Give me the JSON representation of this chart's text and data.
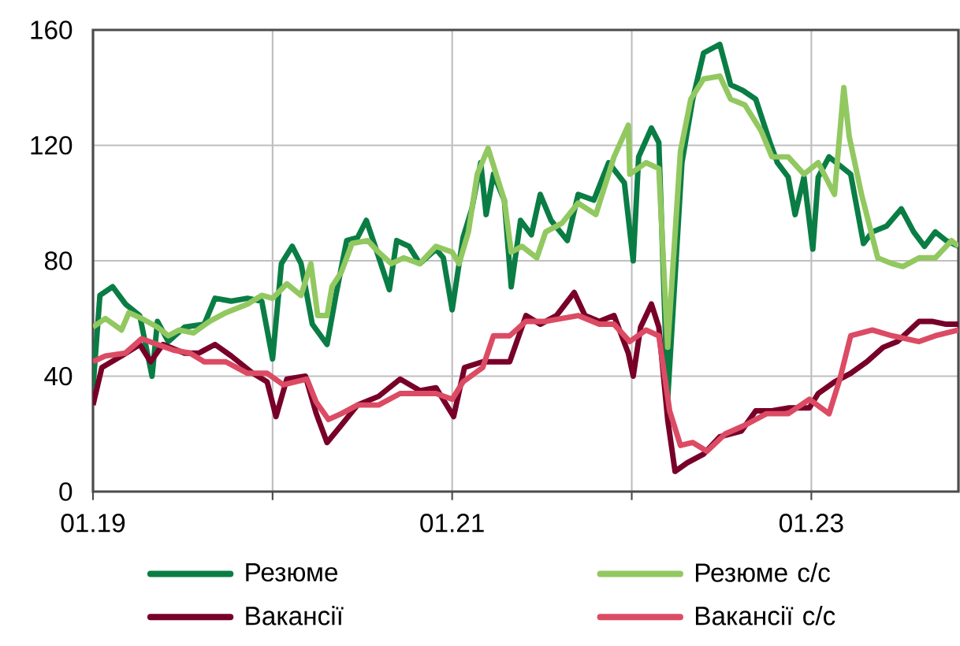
{
  "chart_data": {
    "type": "line",
    "xlim": [
      "2019-01-01",
      "2023-10-27"
    ],
    "ylim": [
      0,
      160
    ],
    "xticks": [
      {
        "value": "2019-01-01",
        "label": "01.19"
      },
      {
        "value": "2020-01-01",
        "label": null
      },
      {
        "value": "2021-01-01",
        "label": "01.21"
      },
      {
        "value": "2022-01-01",
        "label": null
      },
      {
        "value": "2023-01-01",
        "label": "01.23"
      }
    ],
    "yticks": [
      0,
      40,
      80,
      120,
      160
    ],
    "grid": true,
    "legend": "bottom",
    "marker": "none",
    "line_style": "solid",
    "series": [
      {
        "name": "Резюме",
        "color": "#0a7d45",
        "x": [
          "2019-01-01",
          "2019-01-15",
          "2019-02-10",
          "2019-03-08",
          "2019-04-06",
          "2019-05-01",
          "2019-05-12",
          "2019-06-03",
          "2019-07-06",
          "2019-08-15",
          "2019-09-06",
          "2019-10-09",
          "2019-11-11",
          "2019-12-10",
          "2020-01-01",
          "2020-01-19",
          "2020-02-10",
          "2020-02-28",
          "2020-03-22",
          "2020-04-21",
          "2020-05-09",
          "2020-05-31",
          "2020-06-22",
          "2020-07-10",
          "2020-07-28",
          "2020-08-26",
          "2020-09-10",
          "2020-10-05",
          "2020-10-27",
          "2020-11-29",
          "2020-12-14",
          "2021-01-01",
          "2021-01-23",
          "2021-02-10",
          "2021-02-28",
          "2021-03-11",
          "2021-03-26",
          "2021-04-17",
          "2021-05-01",
          "2021-05-20",
          "2021-06-11",
          "2021-06-29",
          "2021-07-21",
          "2021-08-23",
          "2021-09-14",
          "2021-10-16",
          "2021-11-15",
          "2021-12-17",
          "2022-01-04",
          "2022-01-15",
          "2022-02-10",
          "2022-02-25",
          "2022-03-15",
          "2022-04-13",
          "2022-05-05",
          "2022-05-27",
          "2022-06-29",
          "2022-07-21",
          "2022-08-15",
          "2022-09-10",
          "2022-10-09",
          "2022-10-24",
          "2022-11-15",
          "2022-11-29",
          "2022-12-17",
          "2023-01-04",
          "2023-01-15",
          "2023-02-06",
          "2023-02-28",
          "2023-03-22",
          "2023-04-17",
          "2023-05-05",
          "2023-06-03",
          "2023-07-03",
          "2023-07-28",
          "2023-08-19",
          "2023-09-10",
          "2023-10-02",
          "2023-10-27"
        ],
        "values": [
          36,
          68,
          71,
          65,
          61,
          40,
          59,
          52,
          57,
          58,
          67,
          66,
          67,
          66,
          46,
          79,
          85,
          79,
          58,
          51,
          68,
          87,
          88,
          94,
          85,
          70,
          87,
          85,
          79,
          84,
          81,
          63,
          88,
          98,
          114,
          96,
          110,
          101,
          71,
          94,
          89,
          103,
          94,
          87,
          103,
          101,
          114,
          107,
          80,
          116,
          126,
          121,
          32,
          114,
          136,
          152,
          155,
          141,
          139,
          136,
          121,
          114,
          109,
          96,
          109,
          84,
          109,
          116,
          113,
          110,
          86,
          90,
          92,
          98,
          90,
          85,
          90,
          87,
          85
        ]
      },
      {
        "name": "Резюме с/с",
        "color": "#92c860",
        "x": [
          "2019-01-01",
          "2019-01-26",
          "2019-02-28",
          "2019-03-15",
          "2019-04-10",
          "2019-05-12",
          "2019-06-03",
          "2019-06-25",
          "2019-07-24",
          "2019-08-26",
          "2019-09-28",
          "2019-11-11",
          "2019-12-10",
          "2020-01-01",
          "2020-01-30",
          "2020-02-28",
          "2020-03-19",
          "2020-04-02",
          "2020-04-21",
          "2020-05-01",
          "2020-05-20",
          "2020-06-11",
          "2020-07-13",
          "2020-08-04",
          "2020-08-30",
          "2020-09-24",
          "2020-10-27",
          "2020-11-29",
          "2021-01-01",
          "2021-01-15",
          "2021-02-03",
          "2021-02-21",
          "2021-03-15",
          "2021-04-17",
          "2021-05-01",
          "2021-05-23",
          "2021-06-22",
          "2021-07-10",
          "2021-08-12",
          "2021-09-14",
          "2021-10-20",
          "2021-11-26",
          "2021-12-25",
          "2021-12-28",
          "2022-01-30",
          "2022-02-25",
          "2022-03-15",
          "2022-04-10",
          "2022-05-01",
          "2022-05-27",
          "2022-06-29",
          "2022-07-21",
          "2022-08-19",
          "2022-09-21",
          "2022-10-13",
          "2022-11-15",
          "2022-12-17",
          "2023-01-15",
          "2023-02-17",
          "2023-03-08",
          "2023-03-19",
          "2023-04-13",
          "2023-05-16",
          "2023-06-14",
          "2023-07-06",
          "2023-08-08",
          "2023-09-10",
          "2023-10-13",
          "2023-10-27"
        ],
        "values": [
          57,
          60,
          56,
          62,
          60,
          57,
          54,
          56,
          55,
          59,
          62,
          65,
          68,
          67,
          72,
          68,
          79,
          61,
          61,
          71,
          76,
          86,
          87,
          83,
          79,
          81,
          79,
          85,
          83,
          79,
          90,
          110,
          119,
          101,
          83,
          85,
          81,
          90,
          93,
          100,
          96,
          116,
          127,
          110,
          114,
          112,
          50,
          118,
          136,
          143,
          144,
          136,
          134,
          125,
          116,
          116,
          110,
          114,
          103,
          140,
          123,
          103,
          81,
          79,
          78,
          81,
          81,
          87,
          85
        ]
      },
      {
        "name": "Вакансії",
        "color": "#780028",
        "x": [
          "2019-01-01",
          "2019-01-19",
          "2019-02-28",
          "2019-04-06",
          "2019-04-28",
          "2019-05-23",
          "2019-07-06",
          "2019-08-04",
          "2019-09-06",
          "2019-10-09",
          "2019-11-22",
          "2019-12-21",
          "2020-01-08",
          "2020-01-30",
          "2020-03-08",
          "2020-03-30",
          "2020-04-21",
          "2020-05-20",
          "2020-06-22",
          "2020-08-04",
          "2020-09-17",
          "2020-10-27",
          "2020-11-29",
          "2021-01-04",
          "2021-01-26",
          "2021-03-04",
          "2021-03-15",
          "2021-04-28",
          "2021-05-31",
          "2021-06-29",
          "2021-08-01",
          "2021-09-06",
          "2021-09-28",
          "2021-10-27",
          "2021-11-26",
          "2021-12-25",
          "2022-01-04",
          "2022-01-19",
          "2022-02-10",
          "2022-02-25",
          "2022-03-15",
          "2022-03-30",
          "2022-04-24",
          "2022-05-27",
          "2022-06-29",
          "2022-08-12",
          "2022-09-10",
          "2022-10-13",
          "2022-11-15",
          "2022-12-28",
          "2023-01-15",
          "2023-02-17",
          "2023-03-22",
          "2023-04-24",
          "2023-05-27",
          "2023-06-25",
          "2023-08-08",
          "2023-09-03",
          "2023-10-02",
          "2023-10-27"
        ],
        "values": [
          30,
          43,
          47,
          51,
          45,
          51,
          48,
          48,
          51,
          47,
          41,
          38,
          26,
          39,
          40,
          27,
          17,
          23,
          30,
          33,
          39,
          35,
          36,
          26,
          43,
          45,
          45,
          45,
          61,
          58,
          61,
          69,
          61,
          59,
          61,
          48,
          40,
          57,
          65,
          57,
          25,
          7,
          10,
          13,
          19,
          21,
          28,
          28,
          29,
          29,
          34,
          38,
          41,
          45,
          50,
          52,
          59,
          59,
          58,
          58
        ]
      },
      {
        "name": "Вакансії с/с",
        "color": "#dc4b64",
        "x": [
          "2019-01-01",
          "2019-01-26",
          "2019-03-08",
          "2019-04-10",
          "2019-05-12",
          "2019-06-14",
          "2019-07-17",
          "2019-08-15",
          "2019-09-28",
          "2019-11-11",
          "2019-12-21",
          "2020-01-23",
          "2020-03-11",
          "2020-03-30",
          "2020-04-24",
          "2020-05-20",
          "2020-06-22",
          "2020-08-04",
          "2020-09-17",
          "2020-10-27",
          "2020-11-29",
          "2021-01-01",
          "2021-01-23",
          "2021-03-04",
          "2021-03-26",
          "2021-04-28",
          "2021-05-31",
          "2021-07-10",
          "2021-09-14",
          "2021-10-27",
          "2021-11-26",
          "2021-12-28",
          "2022-01-30",
          "2022-02-25",
          "2022-03-19",
          "2022-04-10",
          "2022-05-05",
          "2022-06-03",
          "2022-07-10",
          "2022-08-19",
          "2022-10-02",
          "2022-11-15",
          "2022-12-28",
          "2023-02-06",
          "2023-02-28",
          "2023-03-22",
          "2023-05-05",
          "2023-06-14",
          "2023-08-08",
          "2023-09-10",
          "2023-10-27"
        ],
        "values": [
          45,
          47,
          48,
          53,
          51,
          49,
          48,
          45,
          45,
          41,
          41,
          37,
          39,
          31,
          25,
          27,
          30,
          30,
          34,
          34,
          34,
          32,
          38,
          43,
          54,
          54,
          59,
          59,
          61,
          58,
          58,
          52,
          56,
          54,
          28,
          16,
          17,
          14,
          20,
          23,
          27,
          27,
          32,
          27,
          39,
          54,
          56,
          54,
          52,
          54,
          56
        ]
      }
    ]
  }
}
